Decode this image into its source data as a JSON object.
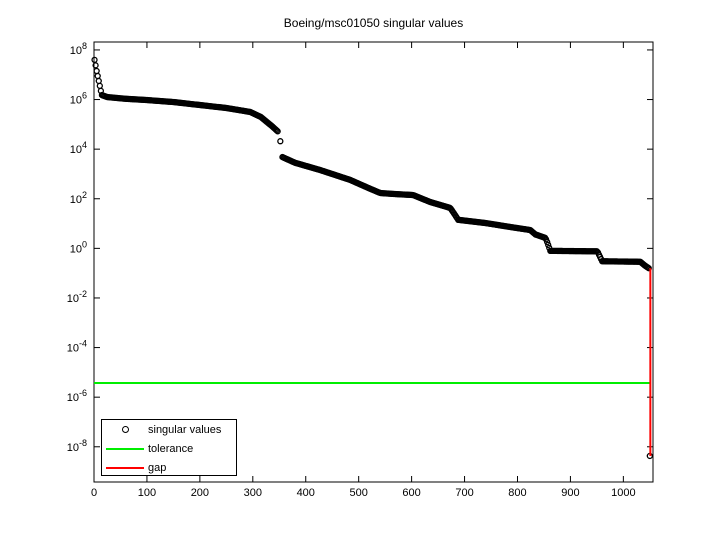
{
  "window": {
    "background": "#ffffff"
  },
  "colors": {
    "axis": "#000000",
    "singular_values": "#000000",
    "tolerance": "#00ee00",
    "gap": "#ff0000"
  },
  "chart_data": {
    "type": "scatter",
    "title": "Boeing/msc01050 singular values",
    "xlabel": "",
    "ylabel": "",
    "y_scale": "log10",
    "grid": false,
    "xlim": [
      0,
      1056
    ],
    "ylim_log10": [
      -9.42,
      8.32
    ],
    "x_ticks": [
      0,
      100,
      200,
      300,
      400,
      500,
      600,
      700,
      800,
      900,
      1000
    ],
    "y_tick_exponents": [
      8,
      6,
      4,
      2,
      0,
      -2,
      -4,
      -6,
      -8
    ],
    "legend_position": "inside-bottom-left",
    "n_singular_values": 1050,
    "series": [
      {
        "name": "singular values",
        "type": "scatter",
        "marker": "o",
        "color": "#000000",
        "marker_index_step": 2,
        "segments": [
          {
            "points_index_log10": [
              [
                1,
                7.6
              ],
              [
                2,
                7.5
              ],
              [
                3,
                7.38
              ],
              [
                5,
                7.15
              ],
              [
                7,
                6.95
              ],
              [
                9,
                6.75
              ],
              [
                11,
                6.55
              ],
              [
                13,
                6.35
              ],
              [
                15,
                6.18
              ],
              [
                25,
                6.1
              ],
              [
                60,
                6.03
              ],
              [
                100,
                5.98
              ],
              [
                150,
                5.9
              ],
              [
                200,
                5.78
              ],
              [
                250,
                5.66
              ],
              [
                295,
                5.5
              ],
              [
                315,
                5.3
              ],
              [
                335,
                4.95
              ],
              [
                348,
                4.7
              ]
            ]
          },
          {
            "points_index_log10": [
              [
                352,
                4.32
              ]
            ]
          },
          {
            "points_index_log10": [
              [
                356,
                3.68
              ],
              [
                380,
                3.45
              ],
              [
                427,
                3.16
              ],
              [
                484,
                2.76
              ],
              [
                520,
                2.42
              ],
              [
                541,
                2.23
              ],
              [
                569,
                2.19
              ],
              [
                603,
                2.15
              ],
              [
                635,
                1.87
              ],
              [
                673,
                1.63
              ],
              [
                681,
                1.38
              ],
              [
                688,
                1.15
              ],
              [
                740,
                1.02
              ],
              [
                790,
                0.85
              ],
              [
                824,
                0.74
              ],
              [
                834,
                0.56
              ],
              [
                853,
                0.42
              ],
              [
                857,
                0.2
              ],
              [
                862,
                -0.1
              ],
              [
                951,
                -0.12
              ],
              [
                955,
                -0.3
              ],
              [
                960,
                -0.52
              ],
              [
                1032,
                -0.54
              ],
              [
                1040,
                -0.68
              ],
              [
                1048,
                -0.8
              ]
            ]
          },
          {
            "points_index_log10": [
              [
                1050,
                -8.37
              ]
            ]
          }
        ]
      },
      {
        "name": "tolerance",
        "type": "hline",
        "color": "#00ee00",
        "value_log10": -5.43,
        "x_range": [
          0,
          1051
        ]
      },
      {
        "name": "gap",
        "type": "vline",
        "color": "#ff0000",
        "x": 1051,
        "y_range_log10": [
          -0.8,
          -8.37
        ]
      }
    ]
  },
  "legend": {
    "items": [
      {
        "label": "singular values",
        "swatch": "circle-marker",
        "color": "#000000"
      },
      {
        "label": "tolerance",
        "swatch": "line",
        "color": "#00ee00"
      },
      {
        "label": "gap",
        "swatch": "line",
        "color": "#ff0000"
      }
    ]
  }
}
